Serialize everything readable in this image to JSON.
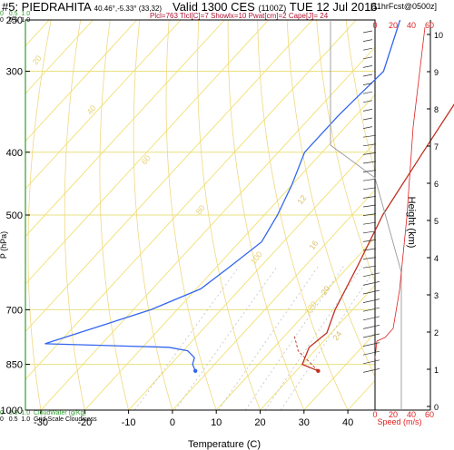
{
  "header": {
    "station": "#5: PIEDRAHITA",
    "coords": "40.46°,-5.33° (33,32)",
    "valid": "Valid 1300 CES",
    "valid_utc": "(1100Z)",
    "date": "TUE 12 Jul 2016",
    "forecast": "[11hrFcst@0500z]",
    "stats": "Plcl=763 Tlcl[C]=7 Showlx=10 Pwat[cm]=2 Cape[J]= 24"
  },
  "cloud": {
    "top_scale": [
      "0",
      "0.5",
      "1.0"
    ],
    "top_scale_green": [
      "0",
      "0.5",
      "1.0"
    ],
    "cloudwater_label": "CloudWater (g/Kg)",
    "bottom_scale": [
      "0",
      "0.5",
      "1.0"
    ],
    "cloudiness_label": "Grid-Scale Cloudiness"
  },
  "colors": {
    "temperature": "#c03020",
    "dewpoint": "#3366ee",
    "isotherm": "#f0e070",
    "dry_adiabat": "#f0d880",
    "grid": "#e8e080",
    "wind_axis": "#e02020",
    "green": "#2e9e2e"
  },
  "chart_data": {
    "type": "line",
    "title": "#5: PIEDRAHITA",
    "xlabel": "Temperature (C)",
    "ylabel": "P (hPa)",
    "x_ticks": [
      "-30",
      "-20",
      "-10",
      "0",
      "10",
      "20",
      "30",
      "40"
    ],
    "y_ticks": [
      "250",
      "300",
      "400",
      "500",
      "700",
      "850",
      "1000"
    ],
    "xlim": [
      -30,
      50
    ],
    "ylim": [
      1000,
      250
    ],
    "series": [
      {
        "name": "Temperature",
        "points": [
          [
            -5,
            250
          ],
          [
            -2,
            300
          ],
          [
            3,
            400
          ],
          [
            7,
            500
          ],
          [
            12,
            600
          ],
          [
            16,
            700
          ],
          [
            19,
            760
          ],
          [
            18,
            800
          ],
          [
            20,
            850
          ],
          [
            25,
            870
          ]
        ]
      },
      {
        "name": "Dewpoint",
        "points": [
          [
            -30,
            250
          ],
          [
            -23,
            300
          ],
          [
            -24,
            350
          ],
          [
            -24,
            400
          ],
          [
            -20,
            450
          ],
          [
            -17,
            500
          ],
          [
            -15,
            550
          ],
          [
            -17,
            600
          ],
          [
            -19,
            650
          ],
          [
            -26,
            700
          ],
          [
            -43,
            790
          ],
          [
            -14,
            800
          ],
          [
            -9,
            810
          ],
          [
            -6,
            830
          ],
          [
            -5,
            850
          ],
          [
            -3,
            870
          ]
        ]
      }
    ],
    "wind_axis": {
      "label": "Speed (m/s)",
      "ticks": [
        "0",
        "20",
        "40",
        "60"
      ],
      "top_ticks": [
        "0",
        "20",
        "40",
        "60"
      ]
    },
    "height_axis": {
      "label": "Height (km)",
      "ticks": [
        "0",
        "1",
        "2",
        "3",
        "4",
        "5",
        "6",
        "7",
        "8",
        "9",
        "10"
      ]
    },
    "mixing_ratio_labels": [
      "12",
      "16",
      "20",
      "24"
    ],
    "adiabat_labels": [
      "20",
      "40",
      "60",
      "80",
      "100",
      "120"
    ]
  }
}
